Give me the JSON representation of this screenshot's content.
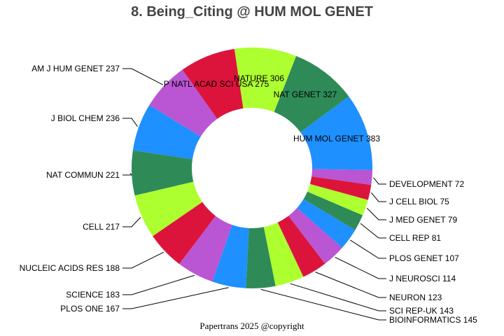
{
  "chart_data": {
    "type": "pie",
    "donut": true,
    "title": "8. Being_Citing @ HUM MOL GENET",
    "footer": "Papertrans 2025 @copyright",
    "categories": [
      "HUM MOL GENET",
      "NAT GENET",
      "NATURE",
      "P NATL ACAD SCI USA",
      "AM J HUM GENET",
      "J BIOL CHEM",
      "NAT COMMUN",
      "CELL",
      "NUCLEIC ACIDS RES",
      "SCIENCE",
      "PLOS ONE",
      "BIOINFORMATICS",
      "SCI REP-UK",
      "NEURON",
      "J NEUROSCI",
      "PLOS GENET",
      "CELL REP",
      "J MED GENET",
      "J CELL BIOL",
      "DEVELOPMENT"
    ],
    "values": [
      383,
      327,
      306,
      275,
      237,
      236,
      221,
      217,
      188,
      183,
      167,
      145,
      143,
      123,
      114,
      107,
      81,
      79,
      75,
      72
    ],
    "colors": [
      "#1E90FF",
      "#2E8B57",
      "#ADFF2F",
      "#DC143C",
      "#BA55D3"
    ],
    "legend": "none"
  }
}
